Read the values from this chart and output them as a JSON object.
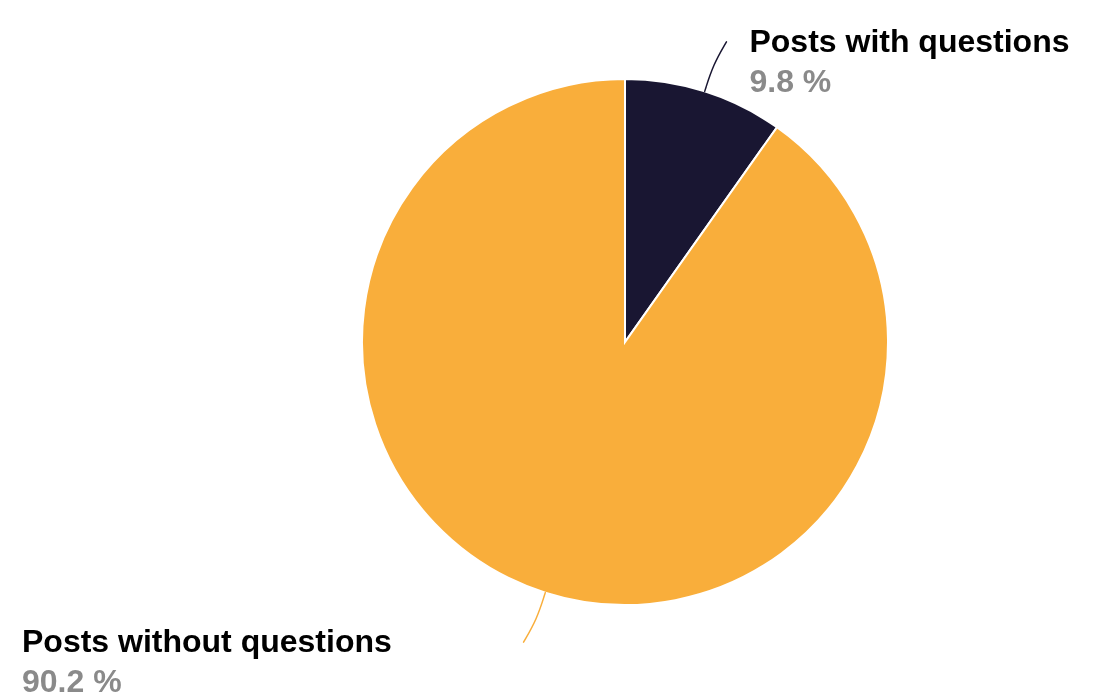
{
  "chart_data": {
    "type": "pie",
    "categories": [
      "Posts with questions",
      "Posts without questions"
    ],
    "values": [
      9.8,
      90.2
    ],
    "colors": [
      "#191632",
      "#f9ae3b"
    ],
    "value_labels": [
      "9.8 %",
      "90.2 %"
    ]
  }
}
